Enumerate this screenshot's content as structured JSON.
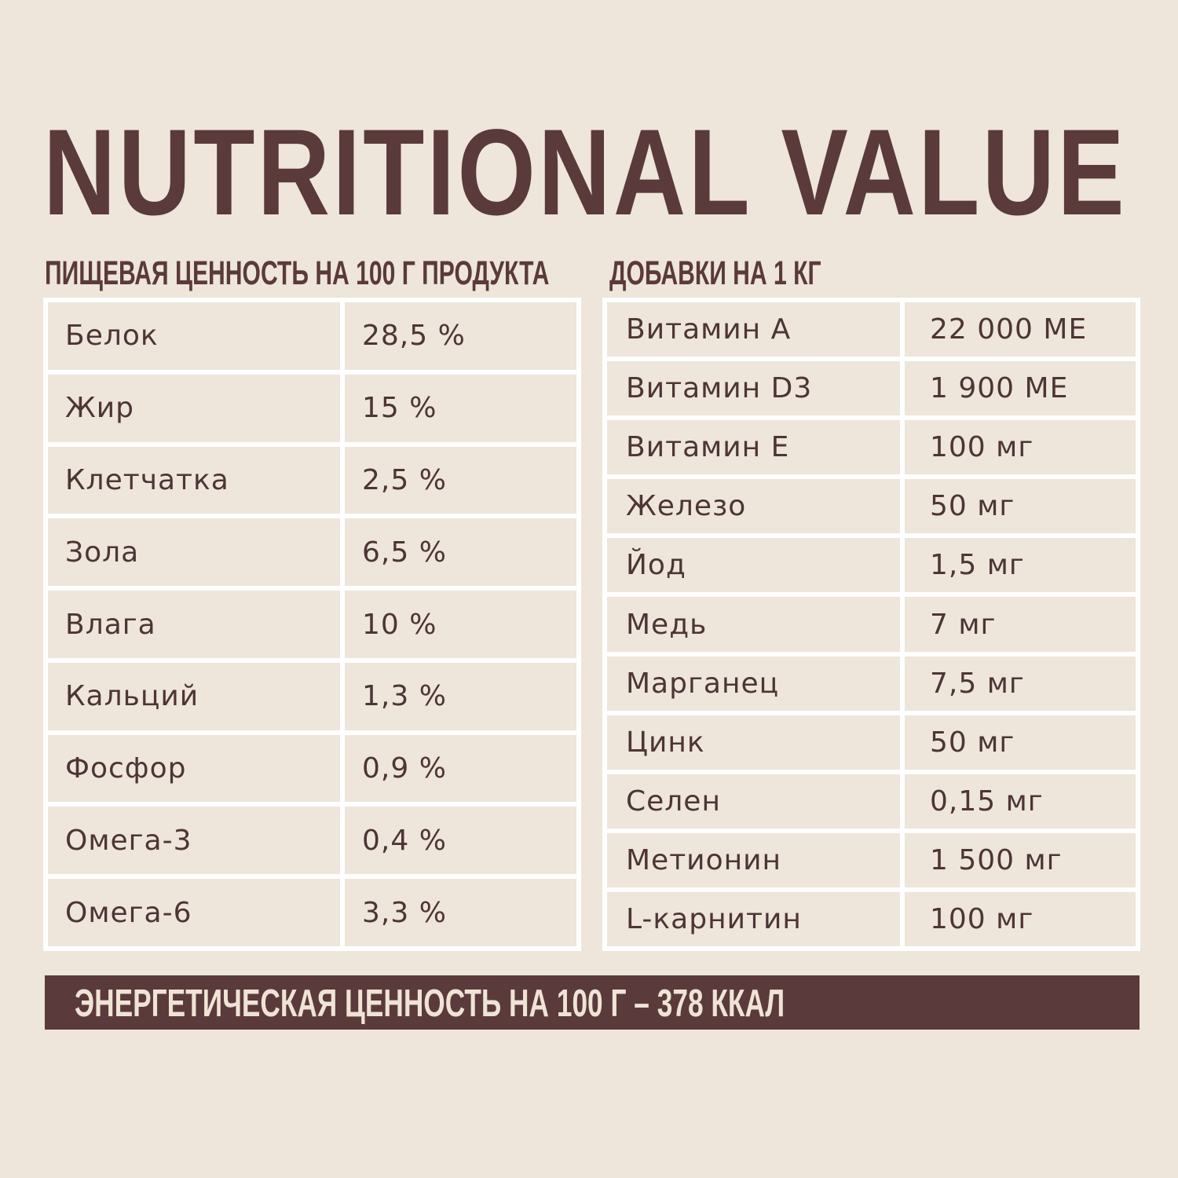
{
  "title": "NUTRITIONAL VALUE",
  "nutrition": {
    "heading": "ПИЩЕВАЯ ЦЕННОСТЬ НА 100 Г ПРОДУКТА",
    "rows": [
      {
        "name": "Белок",
        "value": "28,5 %"
      },
      {
        "name": "Жир",
        "value": "15 %"
      },
      {
        "name": "Клетчатка",
        "value": "2,5 %"
      },
      {
        "name": "Зола",
        "value": "6,5 %"
      },
      {
        "name": "Влага",
        "value": "10 %"
      },
      {
        "name": "Кальций",
        "value": "1,3 %"
      },
      {
        "name": "Фосфор",
        "value": "0,9 %"
      },
      {
        "name": "Омега-3",
        "value": "0,4 %"
      },
      {
        "name": "Омега-6",
        "value": "3,3 %"
      }
    ]
  },
  "additives": {
    "heading": "ДОБАВКИ  НА 1 КГ",
    "rows": [
      {
        "name": "Витамин А",
        "value": "22 000 МЕ"
      },
      {
        "name": "Витамин D3",
        "value": "1 900 МЕ"
      },
      {
        "name": "Витамин Е",
        "value": "100 мг"
      },
      {
        "name": "Железо",
        "value": "50 мг"
      },
      {
        "name": "Йод",
        "value": "1,5 мг"
      },
      {
        "name": "Медь",
        "value": "7 мг"
      },
      {
        "name": "Марганец",
        "value": "7,5 мг"
      },
      {
        "name": "Цинк",
        "value": "50 мг"
      },
      {
        "name": "Селен",
        "value": "0,15 мг"
      },
      {
        "name": "Метионин",
        "value": "1 500 мг"
      },
      {
        "name": "L-карнитин",
        "value": "100 мг"
      }
    ]
  },
  "energy": "ЭНЕРГЕТИЧЕСКАЯ ЦЕННОСТЬ НА 100 Г – 378 ККАЛ",
  "colors": {
    "background": "#eee5db",
    "brand_brown": "#5a3a3a",
    "table_border": "#ffffff"
  }
}
